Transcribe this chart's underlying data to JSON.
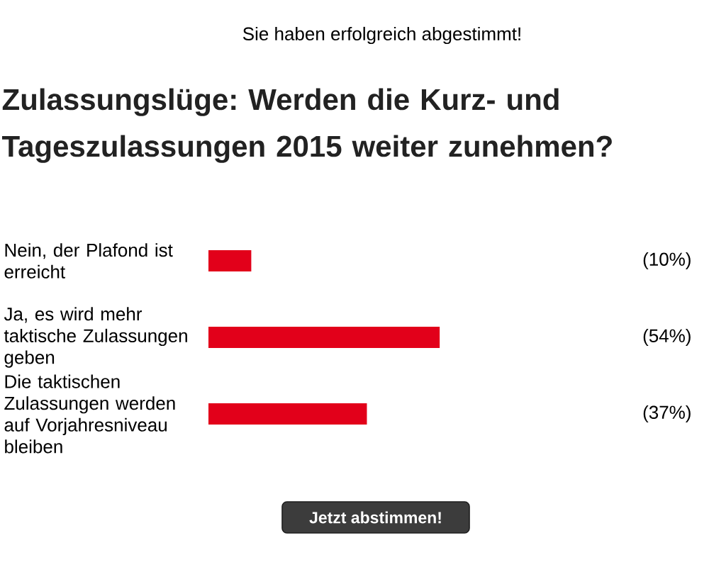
{
  "chart_data": {
    "type": "bar",
    "orientation": "horizontal",
    "title": "Zulassungslüge: Werden die Kurz- und Tageszulassungen 2015 weiter zunehmen?",
    "categories": [
      "Nein, der Plafond ist erreicht",
      "Ja, es wird mehr taktische Zulassungen geben",
      "Die taktischen Zulassungen werden auf Vorjahresniveau bleiben"
    ],
    "values": [
      10,
      54,
      37
    ],
    "value_labels": [
      "(10%)",
      "(54%)",
      "(37%)"
    ],
    "color": "#e2001a",
    "tick_labels": "y",
    "annotations": [
      "Sie haben erfolgreich abgestimmt!",
      "Jetzt abstimmen!"
    ]
  }
}
